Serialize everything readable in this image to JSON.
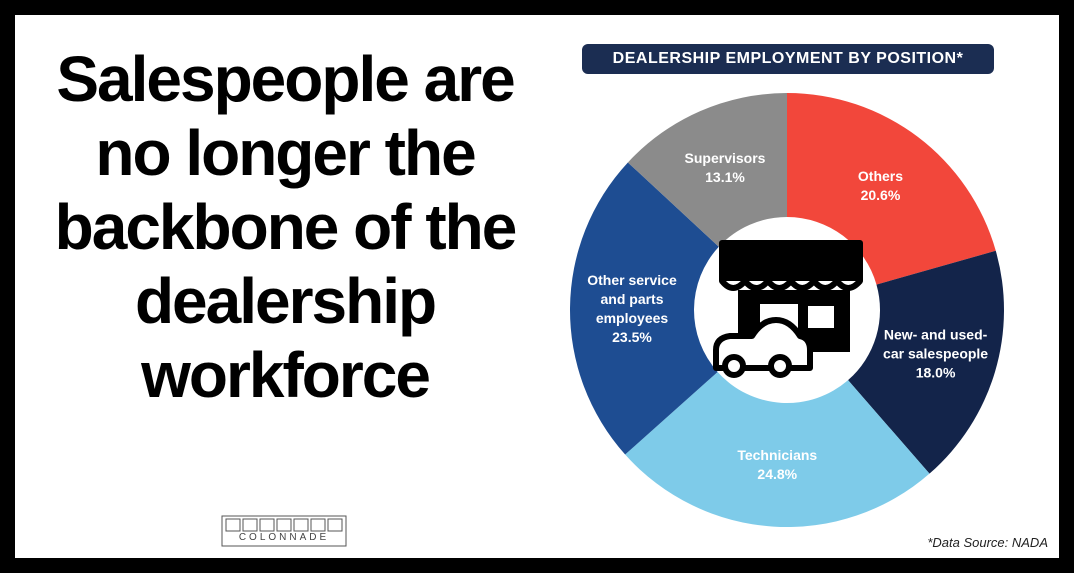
{
  "headline": "Salespeople are no longer the backbone of the dealership workforce",
  "logo": "COLONNADE",
  "source": "*Data Source: NADA",
  "chart_data": {
    "type": "pie",
    "title": "DEALERSHIP EMPLOYMENT BY POSITION*",
    "categories": [
      "Others",
      "New- and used-car salespeople",
      "Technicians",
      "Other service and parts employees",
      "Supervisors"
    ],
    "values": [
      20.6,
      18.0,
      24.8,
      23.5,
      13.1
    ],
    "value_labels": [
      "20.6%",
      "18.0%",
      "24.8%",
      "23.5%",
      "13.1%"
    ],
    "colors": [
      "#f2473b",
      "#13244a",
      "#7ecbe9",
      "#1e4d92",
      "#8b8b8b"
    ],
    "donut": true
  }
}
